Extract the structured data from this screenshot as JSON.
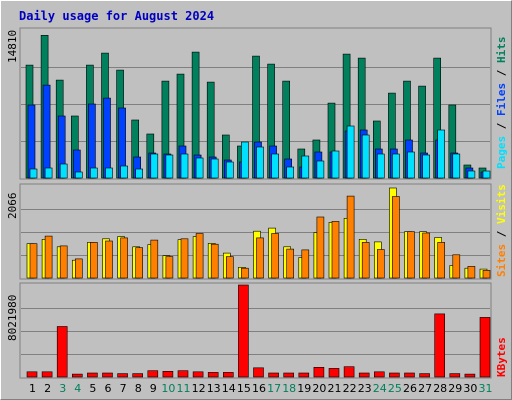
{
  "title": "Daily usage for August 2024",
  "colors": {
    "title": "#0000c0",
    "hits": "#00805c",
    "files": "#0040ff",
    "pages": "#00e0ff",
    "visits": "#ffff00",
    "sites": "#ff8000",
    "kbytes": "#ff0000",
    "weekend_label": "#00805c",
    "weekday_label": "#000000"
  },
  "chart_data": [
    {
      "type": "bar",
      "panel": "top",
      "ytick": "14810",
      "ylim": [
        0,
        14810
      ],
      "series": [
        {
          "name": "Hits",
          "values": [
            11300,
            14280,
            9800,
            6200,
            11300,
            12500,
            10800,
            5800,
            4400,
            9700,
            10400,
            12600,
            9600,
            4300,
            3200,
            12200,
            11400,
            9700,
            2900,
            3800,
            7500,
            12400,
            12000,
            5700,
            8500,
            9700,
            9200,
            12000,
            7300,
            1300,
            1000
          ]
        },
        {
          "name": "Files",
          "values": [
            7300,
            9300,
            6200,
            2800,
            7400,
            8000,
            7000,
            2100,
            2500,
            2400,
            3200,
            2300,
            2100,
            1800,
            1600,
            3600,
            3200,
            1900,
            1100,
            2600,
            2600,
            4700,
            4800,
            2900,
            2900,
            3800,
            2500,
            3800,
            2500,
            1000,
            600
          ]
        },
        {
          "name": "Pages",
          "values": [
            900,
            1000,
            1400,
            600,
            1000,
            1000,
            1200,
            900,
            2400,
            2300,
            2400,
            2000,
            1900,
            1600,
            3600,
            3100,
            2400,
            1100,
            2200,
            1700,
            2700,
            5200,
            4300,
            2400,
            2400,
            2600,
            2300,
            4800,
            2400,
            700,
            700
          ]
        }
      ],
      "legend": [
        "Pages",
        "Files",
        "Hits"
      ]
    },
    {
      "type": "bar",
      "panel": "middle",
      "ytick": "2066",
      "ylim": [
        0,
        2066
      ],
      "series": [
        {
          "name": "Visits",
          "values": [
            770,
            870,
            700,
            400,
            800,
            880,
            930,
            700,
            750,
            500,
            860,
            930,
            780,
            560,
            240,
            1050,
            1120,
            700,
            460,
            1020,
            1250,
            1340,
            870,
            810,
            2020,
            1040,
            1040,
            910,
            280,
            220,
            200
          ]
        },
        {
          "name": "Sites",
          "values": [
            770,
            940,
            720,
            430,
            800,
            830,
            900,
            680,
            850,
            480,
            880,
            1000,
            760,
            480,
            220,
            900,
            1000,
            650,
            630,
            1370,
            1270,
            1840,
            800,
            640,
            1830,
            1040,
            1010,
            800,
            520,
            260,
            170
          ]
        }
      ],
      "legend": [
        "Sites",
        "Visits"
      ]
    },
    {
      "type": "bar",
      "panel": "bottom",
      "ytick": "8021980",
      "ylim": [
        0,
        8021980
      ],
      "series": [
        {
          "name": "KBytes",
          "values": [
            450000,
            450000,
            4400000,
            250000,
            350000,
            350000,
            300000,
            300000,
            550000,
            500000,
            550000,
            450000,
            400000,
            400000,
            8021980,
            800000,
            350000,
            350000,
            350000,
            850000,
            750000,
            900000,
            350000,
            450000,
            350000,
            350000,
            300000,
            5500000,
            300000,
            250000,
            5200000
          ]
        }
      ],
      "legend": [
        "KBytes"
      ]
    }
  ],
  "days": [
    "1",
    "2",
    "3",
    "4",
    "5",
    "6",
    "7",
    "8",
    "9",
    "10",
    "11",
    "12",
    "13",
    "14",
    "15",
    "16",
    "17",
    "18",
    "19",
    "20",
    "21",
    "22",
    "23",
    "24",
    "25",
    "26",
    "27",
    "28",
    "29",
    "30",
    "31"
  ],
  "weekend_days": [
    3,
    4,
    10,
    11,
    17,
    18,
    24,
    25,
    31
  ]
}
